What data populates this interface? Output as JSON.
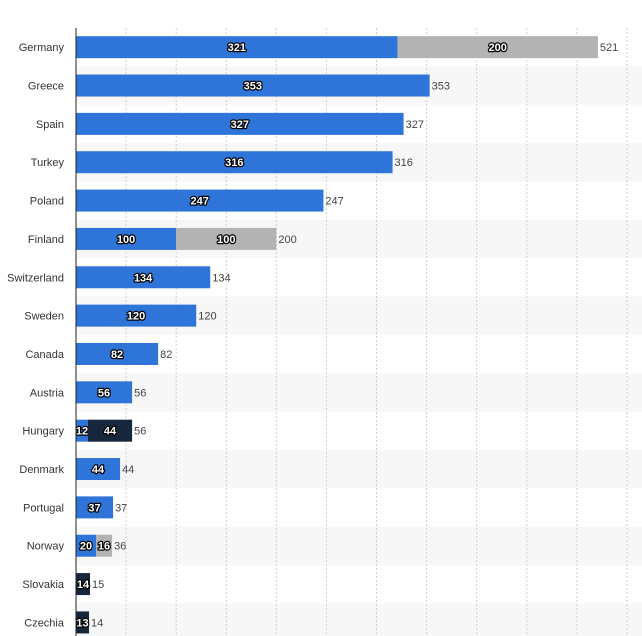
{
  "chart_data": {
    "type": "bar",
    "orientation": "horizontal",
    "stacked": true,
    "categories": [
      "Germany",
      "Greece",
      "Spain",
      "Turkey",
      "Poland",
      "Finland",
      "Switzerland",
      "Sweden",
      "Canada",
      "Austria",
      "Hungary",
      "Denmark",
      "Portugal",
      "Norway",
      "Slovakia",
      "Czechia"
    ],
    "series": [
      {
        "color": "#2f74d8",
        "values": [
          321,
          353,
          327,
          316,
          247,
          100,
          134,
          120,
          82,
          56,
          12,
          44,
          37,
          20,
          0,
          0
        ]
      },
      {
        "color": "#b3b3b3",
        "values": [
          200,
          0,
          0,
          0,
          0,
          100,
          0,
          0,
          0,
          0,
          0,
          0,
          0,
          16,
          0,
          0
        ]
      },
      {
        "color": "#16273b",
        "values": [
          0,
          0,
          0,
          0,
          0,
          0,
          0,
          0,
          0,
          0,
          44,
          0,
          0,
          0,
          14,
          13
        ]
      }
    ],
    "totals": [
      521,
      353,
      327,
      316,
      247,
      200,
      134,
      120,
      82,
      56,
      56,
      44,
      37,
      36,
      15,
      14
    ],
    "series_labels": [
      [
        "321",
        "353",
        "327",
        "316",
        "247",
        "100",
        "134",
        "120",
        "82",
        "56",
        "12",
        "44",
        "37",
        "20",
        "",
        ""
      ],
      [
        "200",
        "",
        "",
        "",
        "",
        "100",
        "",
        "",
        "",
        "",
        "",
        "",
        "",
        "16",
        "",
        ""
      ],
      [
        "",
        "",
        "",
        "",
        "",
        "",
        "",
        "",
        "",
        "",
        "44",
        "",
        "",
        "",
        "14",
        "13"
      ]
    ],
    "xlim": [
      0,
      565
    ],
    "grid": true,
    "gridline_style": "dotted",
    "row_banding": true,
    "legend": "none",
    "title": "",
    "xlabel": "",
    "ylabel": ""
  }
}
